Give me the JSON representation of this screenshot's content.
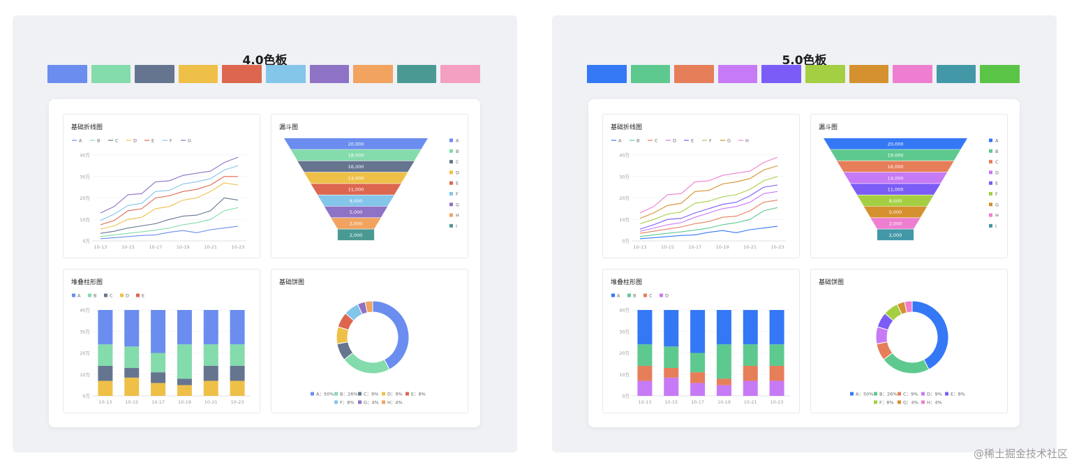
{
  "panels": [
    {
      "title": "4.0色板",
      "palette": [
        "#6a8def",
        "#84dbac",
        "#66758f",
        "#efc048",
        "#dd664f",
        "#84c5ea",
        "#8e72c5",
        "#f1a35f",
        "#4a9a93",
        "#f4a0c2"
      ],
      "charts": {
        "line": {
          "title": "基础折线图"
        },
        "funnel": {
          "title": "漏斗图"
        },
        "bar": {
          "title": "堆叠柱形图"
        },
        "pie": {
          "title": "基础饼图"
        }
      }
    },
    {
      "title": "5.0色板",
      "palette": [
        "#3478f6",
        "#5ec98f",
        "#e67e5a",
        "#c77af5",
        "#7b5cf6",
        "#a5cf42",
        "#d5902f",
        "#ee7fd0",
        "#4398a7",
        "#5ac446"
      ],
      "charts": {
        "line": {
          "title": "基础折线图"
        },
        "funnel": {
          "title": "漏斗图"
        },
        "bar": {
          "title": "堆叠柱形图"
        },
        "pie": {
          "title": "基础饼图"
        }
      }
    }
  ],
  "chart_data": [
    {
      "panel": "4.0色板",
      "type": "line",
      "title": "基础折线图",
      "categories": [
        "10-13",
        "10-14",
        "10-15",
        "10-16",
        "10-17",
        "10-18",
        "10-19",
        "10-20",
        "10-21",
        "10-22",
        "10-23"
      ],
      "ylim": [
        0,
        400000
      ],
      "yticks": [
        "0万",
        "10万",
        "20万",
        "30万",
        "40万"
      ],
      "xticks": [
        "10-13",
        "10-15",
        "10-17",
        "10-19",
        "10-21",
        "10-23"
      ],
      "series": [
        {
          "name": "A",
          "values": [
            10000,
            15000,
            20000,
            25000,
            28000,
            40000,
            48000,
            38000,
            52000,
            60000,
            68000
          ]
        },
        {
          "name": "B",
          "values": [
            20000,
            28000,
            35000,
            42000,
            50000,
            60000,
            75000,
            85000,
            100000,
            140000,
            155000
          ]
        },
        {
          "name": "C",
          "values": [
            35000,
            45000,
            60000,
            70000,
            80000,
            100000,
            115000,
            120000,
            140000,
            200000,
            190000
          ]
        },
        {
          "name": "D",
          "values": [
            55000,
            70000,
            100000,
            110000,
            150000,
            160000,
            190000,
            200000,
            230000,
            270000,
            260000
          ]
        },
        {
          "name": "E",
          "values": [
            75000,
            95000,
            140000,
            150000,
            200000,
            210000,
            230000,
            240000,
            260000,
            300000,
            300000
          ]
        },
        {
          "name": "F",
          "values": [
            95000,
            125000,
            165000,
            175000,
            230000,
            235000,
            265000,
            275000,
            290000,
            330000,
            350000
          ]
        },
        {
          "name": "G",
          "values": [
            130000,
            160000,
            215000,
            220000,
            275000,
            280000,
            305000,
            315000,
            325000,
            365000,
            390000
          ]
        }
      ]
    },
    {
      "panel": "4.0色板",
      "type": "funnel",
      "title": "漏斗图",
      "categories": [
        "A",
        "B",
        "C",
        "D",
        "E",
        "F",
        "G",
        "H",
        "I"
      ],
      "values": [
        20000,
        18000,
        16000,
        14000,
        11000,
        8000,
        5000,
        2000,
        2000
      ],
      "labels": [
        "20,000",
        "18,000",
        "16,000",
        "14,000",
        "11,000",
        "8,000",
        "5,000",
        "2,000",
        "2,000"
      ]
    },
    {
      "panel": "4.0色板",
      "type": "bar",
      "title": "堆叠柱形图",
      "categories": [
        "10-13",
        "10-15",
        "10-17",
        "10-19",
        "10-21",
        "10-23"
      ],
      "ylim": [
        0,
        400000
      ],
      "yticks": [
        "0万",
        "10万",
        "20万",
        "30万",
        "40万"
      ],
      "series": [
        {
          "name": "A",
          "values": [
            160000,
            170000,
            200000,
            160000,
            160000,
            160000
          ]
        },
        {
          "name": "B",
          "values": [
            100000,
            100000,
            90000,
            160000,
            100000,
            100000
          ]
        },
        {
          "name": "C",
          "values": [
            70000,
            45000,
            50000,
            30000,
            70000,
            70000
          ]
        },
        {
          "name": "D",
          "values": [
            70000,
            85000,
            60000,
            50000,
            70000,
            70000
          ]
        },
        {
          "name": "E",
          "values": [
            0,
            0,
            0,
            0,
            0,
            0
          ]
        }
      ]
    },
    {
      "panel": "4.0色板",
      "type": "pie",
      "title": "基础饼图",
      "categories": [
        "A",
        "B",
        "C",
        "D",
        "E",
        "F",
        "G",
        "H"
      ],
      "values": [
        50,
        26,
        9,
        9,
        8,
        8,
        4,
        4
      ],
      "labels": [
        "A：50%",
        "B：26%",
        "C：9%",
        "D：9%",
        "E：8%",
        "F：8%",
        "G：4%",
        "H：4%"
      ]
    },
    {
      "panel": "5.0色板",
      "type": "line",
      "title": "基础折线图",
      "categories": [
        "10-13",
        "10-14",
        "10-15",
        "10-16",
        "10-17",
        "10-18",
        "10-19",
        "10-20",
        "10-21",
        "10-22",
        "10-23"
      ],
      "ylim": [
        0,
        400000
      ],
      "yticks": [
        "0万",
        "10万",
        "20万",
        "30万",
        "40万"
      ],
      "xticks": [
        "10-13",
        "10-15",
        "10-17",
        "10-19",
        "10-21",
        "10-23"
      ],
      "series": [
        {
          "name": "A",
          "values": [
            10000,
            15000,
            20000,
            25000,
            28000,
            40000,
            48000,
            38000,
            52000,
            60000,
            68000
          ]
        },
        {
          "name": "B",
          "values": [
            20000,
            28000,
            35000,
            42000,
            50000,
            60000,
            75000,
            85000,
            100000,
            140000,
            155000
          ]
        },
        {
          "name": "C",
          "values": [
            35000,
            45000,
            55000,
            65000,
            80000,
            90000,
            110000,
            115000,
            140000,
            180000,
            190000
          ]
        },
        {
          "name": "D",
          "values": [
            45000,
            60000,
            75000,
            85000,
            110000,
            130000,
            150000,
            160000,
            180000,
            220000,
            230000
          ]
        },
        {
          "name": "E",
          "values": [
            55000,
            75000,
            100000,
            105000,
            130000,
            150000,
            170000,
            180000,
            210000,
            250000,
            260000
          ]
        },
        {
          "name": "F",
          "values": [
            80000,
            100000,
            125000,
            135000,
            175000,
            185000,
            205000,
            215000,
            240000,
            280000,
            300000
          ]
        },
        {
          "name": "G",
          "values": [
            105000,
            130000,
            165000,
            175000,
            230000,
            235000,
            265000,
            275000,
            290000,
            330000,
            350000
          ]
        },
        {
          "name": "H",
          "values": [
            130000,
            160000,
            215000,
            220000,
            275000,
            280000,
            305000,
            315000,
            325000,
            365000,
            390000
          ]
        }
      ]
    },
    {
      "panel": "5.0色板",
      "type": "funnel",
      "title": "漏斗图",
      "categories": [
        "A",
        "B",
        "C",
        "D",
        "E",
        "F",
        "G",
        "H",
        "I"
      ],
      "values": [
        20000,
        19000,
        16000,
        14000,
        11000,
        8000,
        5000,
        2000,
        2000
      ],
      "labels": [
        "20,000",
        "19,000",
        "16,000",
        "14,000",
        "11,000",
        "8,000",
        "5,000",
        "2,000",
        "2,000"
      ]
    },
    {
      "panel": "5.0色板",
      "type": "bar",
      "title": "堆叠柱形图",
      "categories": [
        "10-13",
        "10-15",
        "10-17",
        "10-19",
        "10-21",
        "10-23"
      ],
      "ylim": [
        0,
        400000
      ],
      "yticks": [
        "0万",
        "10万",
        "20万",
        "30万",
        "40万"
      ],
      "series": [
        {
          "name": "A",
          "values": [
            160000,
            170000,
            200000,
            160000,
            160000,
            160000
          ]
        },
        {
          "name": "B",
          "values": [
            100000,
            100000,
            90000,
            160000,
            100000,
            100000
          ]
        },
        {
          "name": "C",
          "values": [
            70000,
            45000,
            50000,
            30000,
            70000,
            70000
          ]
        },
        {
          "name": "D",
          "values": [
            70000,
            85000,
            60000,
            50000,
            70000,
            70000
          ]
        }
      ]
    },
    {
      "panel": "5.0色板",
      "type": "pie",
      "title": "基础饼图",
      "categories": [
        "A",
        "B",
        "C",
        "D",
        "E",
        "F",
        "G",
        "H"
      ],
      "values": [
        50,
        26,
        9,
        9,
        8,
        8,
        4,
        4
      ],
      "labels": [
        "A：50%",
        "B：26%",
        "C：9%",
        "D：9%",
        "E：8%",
        "F：8%",
        "G：4%",
        "H：4%"
      ]
    }
  ],
  "watermark": "@稀土掘金技术社区"
}
